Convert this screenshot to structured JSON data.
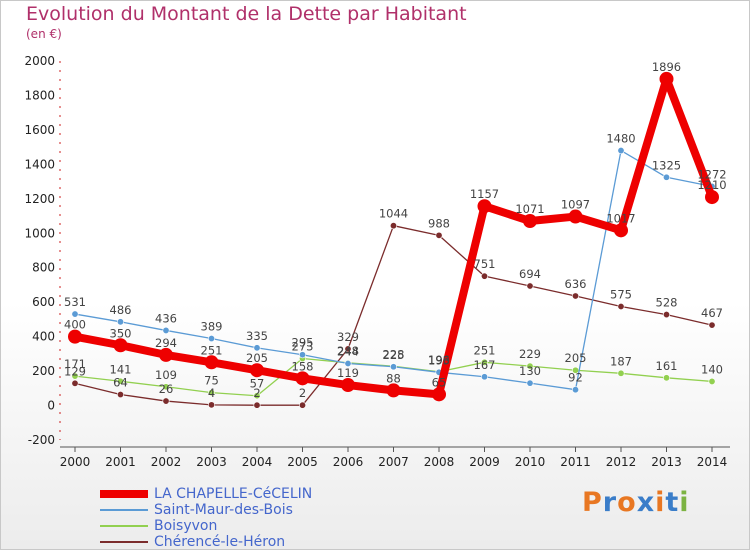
{
  "title": "Evolution du Montant de la Dette par Habitant",
  "subtitle": "(en €)",
  "logo": {
    "text": "Proxiti",
    "colors": [
      "#e87722",
      "#3a7dc9",
      "#e87722",
      "#3a7dc9",
      "#e87722",
      "#3a7dc9",
      "#7cb342"
    ]
  },
  "chart_data": {
    "type": "line",
    "title": "Evolution du Montant de la Dette par Habitant",
    "ylabel": "(en €)",
    "xlabel": "",
    "x": [
      "2000",
      "2001",
      "2002",
      "2003",
      "2004",
      "2005",
      "2006",
      "2007",
      "2008",
      "2009",
      "2010",
      "2011",
      "2012",
      "2013",
      "2014"
    ],
    "ylim": [
      -200,
      2000
    ],
    "yticks": [
      -200,
      0,
      200,
      400,
      600,
      800,
      1000,
      1200,
      1400,
      1600,
      1800,
      2000
    ],
    "grid": false,
    "legend_position": "bottom-left",
    "series": [
      {
        "name": "LA CHAPELLE-CéCELIN",
        "color": "#ee0000",
        "values": [
          400,
          350,
          294,
          251,
          205,
          158,
          119,
          88,
          65,
          1157,
          1071,
          1097,
          1017,
          1896,
          1210
        ],
        "labels": [
          "400",
          "350",
          "294",
          "251",
          "205",
          "158",
          "119",
          "88",
          "65",
          "1157",
          "1071",
          "1097",
          "1017",
          "1896",
          "1210"
        ]
      },
      {
        "name": "Saint-Maur-des-Bois",
        "color": "#5b9bd5",
        "values": [
          531,
          486,
          436,
          389,
          335,
          295,
          244,
          225,
          193,
          167,
          130,
          92,
          1480,
          1325,
          1272
        ],
        "labels": [
          "531",
          "486",
          "436",
          "389",
          "335",
          "295",
          "244",
          "225",
          "193",
          "167",
          "130",
          "92",
          "1480",
          "1325",
          "1272"
        ]
      },
      {
        "name": "Boisyvon",
        "color": "#92d050",
        "values": [
          171,
          141,
          109,
          75,
          57,
          273,
          248,
          228,
          196,
          251,
          229,
          205,
          187,
          161,
          140
        ],
        "labels": [
          "171",
          "141",
          "109",
          "75",
          "57",
          "273",
          "248",
          "228",
          "196",
          "251",
          "229",
          "205",
          "187",
          "161",
          "140"
        ]
      },
      {
        "name": "Chérencé-le-Héron",
        "color": "#7b2c2c",
        "values": [
          129,
          64,
          26,
          4,
          2,
          2,
          329,
          1044,
          988,
          751,
          694,
          636,
          575,
          528,
          467
        ],
        "labels": [
          "129",
          "64",
          "26",
          "4",
          "2",
          "2",
          "329",
          "1044",
          "988",
          "751",
          "694",
          "636",
          "575",
          "528",
          "467"
        ]
      }
    ]
  }
}
